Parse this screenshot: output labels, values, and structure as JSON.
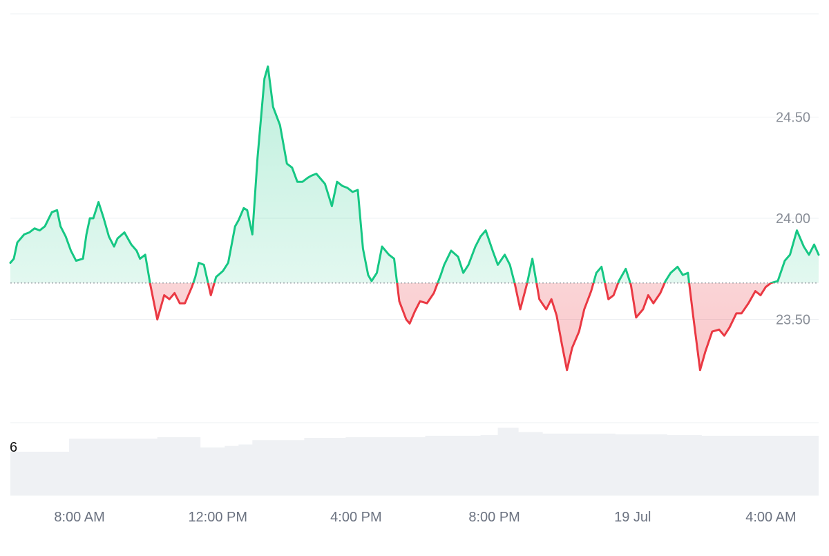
{
  "colors": {
    "up_line": "#16c784",
    "down_line": "#ea3943",
    "up_fill": "#16c784",
    "down_fill": "#ea3943",
    "volume": "#eff1f4",
    "grid": "#eef0f3",
    "baseline": "#8a8f98"
  },
  "volume_label": "6",
  "chart_data": {
    "type": "line",
    "title": "",
    "xlabel": "",
    "ylabel": "",
    "baseline": 23.68,
    "ylim": [
      22.99,
      25.01
    ],
    "y_ticks": [
      {
        "value": 24.5,
        "label": "24.50"
      },
      {
        "value": 24.0,
        "label": "24.00"
      },
      {
        "value": 23.5,
        "label": "23.50"
      }
    ],
    "x_ticks": [
      {
        "hour": 8,
        "label": "8:00 AM"
      },
      {
        "hour": 12,
        "label": "12:00 PM"
      },
      {
        "hour": 16,
        "label": "4:00 PM"
      },
      {
        "hour": 20,
        "label": "8:00 PM"
      },
      {
        "hour": 24,
        "label": "19 Jul"
      },
      {
        "hour": 28,
        "label": "4:00 AM"
      }
    ],
    "xlim": [
      6.0,
      29.38
    ],
    "series": [
      {
        "x": [
          6.0,
          6.1,
          6.2,
          6.4,
          6.55,
          6.7,
          6.85,
          7.0,
          7.2,
          7.35,
          7.45,
          7.6,
          7.75,
          7.9,
          8.1,
          8.2,
          8.3,
          8.4,
          8.55,
          8.7,
          8.85,
          9.0,
          9.1,
          9.3,
          9.5,
          9.65,
          9.75,
          9.9,
          10.05,
          10.25,
          10.45,
          10.6,
          10.75,
          10.9,
          11.05,
          11.25,
          11.35,
          11.45,
          11.6,
          11.8,
          11.95,
          12.15,
          12.3,
          12.5,
          12.6,
          12.75,
          12.85,
          13.0,
          13.15,
          13.35,
          13.45,
          13.6,
          13.8,
          14.0,
          14.15,
          14.3,
          14.45,
          14.6,
          14.7,
          14.85,
          14.95,
          15.1,
          15.3,
          15.45,
          15.6,
          15.75,
          15.9,
          16.05,
          16.2,
          16.35,
          16.45,
          16.6,
          16.75,
          16.95,
          17.1,
          17.25,
          17.45,
          17.55,
          17.7,
          17.85,
          18.05,
          18.25,
          18.45,
          18.55,
          18.75,
          18.95,
          19.1,
          19.25,
          19.45,
          19.6,
          19.75,
          19.95,
          20.1,
          20.3,
          20.45,
          20.6,
          20.75,
          20.95,
          21.1,
          21.3,
          21.5,
          21.65,
          21.8,
          21.95,
          22.1,
          22.25,
          22.45,
          22.6,
          22.8,
          22.95,
          23.1,
          23.3,
          23.45,
          23.6,
          23.8,
          23.95,
          24.1,
          24.3,
          24.45,
          24.6,
          24.8,
          24.95,
          25.1,
          25.3,
          25.45,
          25.6,
          25.75,
          25.95,
          26.1,
          26.3,
          26.5,
          26.65,
          26.8,
          27.0,
          27.15,
          27.35,
          27.55,
          27.7,
          27.85,
          28.0,
          28.2,
          28.4,
          28.55,
          28.75,
          28.95,
          29.1,
          29.25,
          29.38
        ],
        "y": [
          23.78,
          23.8,
          23.88,
          23.92,
          23.93,
          23.95,
          23.94,
          23.96,
          24.03,
          24.04,
          23.96,
          23.91,
          23.84,
          23.79,
          23.8,
          23.92,
          24.0,
          24.0,
          24.08,
          24.0,
          23.91,
          23.86,
          23.9,
          23.93,
          23.87,
          23.84,
          23.8,
          23.82,
          23.67,
          23.5,
          23.62,
          23.6,
          23.63,
          23.58,
          23.58,
          23.66,
          23.71,
          23.78,
          23.77,
          23.62,
          23.71,
          23.74,
          23.78,
          23.96,
          23.99,
          24.05,
          24.04,
          23.92,
          24.3,
          24.69,
          24.75,
          24.55,
          24.46,
          24.27,
          24.25,
          24.18,
          24.18,
          24.2,
          24.21,
          24.22,
          24.2,
          24.17,
          24.06,
          24.18,
          24.16,
          24.15,
          24.13,
          24.14,
          23.85,
          23.72,
          23.69,
          23.73,
          23.86,
          23.82,
          23.8,
          23.59,
          23.5,
          23.48,
          23.54,
          23.59,
          23.58,
          23.63,
          23.72,
          23.77,
          23.84,
          23.81,
          23.73,
          23.77,
          23.86,
          23.91,
          23.94,
          23.84,
          23.77,
          23.82,
          23.77,
          23.67,
          23.55,
          23.68,
          23.8,
          23.6,
          23.55,
          23.6,
          23.52,
          23.38,
          23.25,
          23.36,
          23.44,
          23.55,
          23.64,
          23.73,
          23.76,
          23.6,
          23.62,
          23.69,
          23.75,
          23.67,
          23.51,
          23.55,
          23.62,
          23.58,
          23.63,
          23.69,
          23.73,
          23.76,
          23.72,
          23.73,
          23.52,
          23.25,
          23.34,
          23.44,
          23.45,
          23.42,
          23.46,
          23.53,
          23.53,
          23.58,
          23.64,
          23.62,
          23.66,
          23.68,
          23.69,
          23.79,
          23.82,
          23.94,
          23.86,
          23.82,
          23.87,
          23.82
        ]
      }
    ],
    "volume": {
      "x": [
        6.0,
        7.7,
        7.7,
        10.25,
        10.25,
        11.5,
        11.5,
        12.2,
        12.2,
        12.6,
        12.6,
        13.0,
        13.0,
        14.5,
        14.5,
        15.7,
        15.7,
        18.0,
        18.0,
        19.6,
        19.6,
        20.1,
        20.1,
        20.7,
        20.7,
        21.4,
        21.4,
        23.5,
        23.5,
        25.0,
        25.0,
        26.0,
        26.0,
        29.38
      ],
      "y": [
        0.6,
        0.6,
        0.78,
        0.78,
        0.8,
        0.8,
        0.66,
        0.66,
        0.68,
        0.68,
        0.7,
        0.7,
        0.76,
        0.76,
        0.79,
        0.79,
        0.8,
        0.8,
        0.82,
        0.82,
        0.83,
        0.83,
        0.93,
        0.93,
        0.87,
        0.87,
        0.85,
        0.85,
        0.84,
        0.84,
        0.83,
        0.83,
        0.82,
        0.82
      ]
    }
  }
}
